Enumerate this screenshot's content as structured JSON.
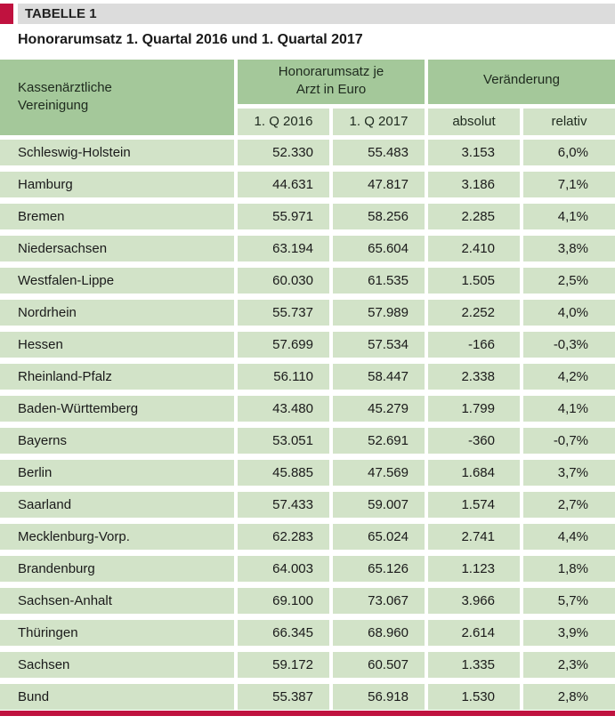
{
  "header": {
    "tag": "TABELLE 1",
    "title": "Honorarumsatz 1. Quartal 2016 und 1. Quartal 2017"
  },
  "colors": {
    "accent_red": "#c0123f",
    "header_green": "#a4c89a",
    "row_green": "#d2e3c8",
    "tag_gray": "#dcdcdc"
  },
  "table": {
    "col_kv_line1": "Kassenärztliche",
    "col_kv_line2": "Vereinigung",
    "group_honorar_line1": "Honorarumsatz  je",
    "group_honorar_line2": "Arzt in Euro",
    "group_change": "Veränderung",
    "sub_q2016": "1. Q 2016",
    "sub_q2017": "1. Q 2017",
    "sub_abs": "absolut",
    "sub_rel": "relativ",
    "rows": [
      {
        "name": "Schleswig-Holstein",
        "q2016": "52.330",
        "q2017": "55.483",
        "abs": "3.153",
        "rel": "6,0%"
      },
      {
        "name": "Hamburg",
        "q2016": "44.631",
        "q2017": "47.817",
        "abs": "3.186",
        "rel": "7,1%"
      },
      {
        "name": "Bremen",
        "q2016": "55.971",
        "q2017": "58.256",
        "abs": "2.285",
        "rel": "4,1%"
      },
      {
        "name": "Niedersachsen",
        "q2016": "63.194",
        "q2017": "65.604",
        "abs": "2.410",
        "rel": "3,8%"
      },
      {
        "name": "Westfalen-Lippe",
        "q2016": "60.030",
        "q2017": "61.535",
        "abs": "1.505",
        "rel": "2,5%"
      },
      {
        "name": "Nordrhein",
        "q2016": "55.737",
        "q2017": "57.989",
        "abs": "2.252",
        "rel": "4,0%"
      },
      {
        "name": "Hessen",
        "q2016": "57.699",
        "q2017": "57.534",
        "abs": "-166",
        "rel": "-0,3%"
      },
      {
        "name": "Rheinland-Pfalz",
        "q2016": "56.110",
        "q2017": "58.447",
        "abs": "2.338",
        "rel": "4,2%"
      },
      {
        "name": "Baden-Württemberg",
        "q2016": "43.480",
        "q2017": "45.279",
        "abs": "1.799",
        "rel": "4,1%"
      },
      {
        "name": "Bayerns",
        "q2016": "53.051",
        "q2017": "52.691",
        "abs": "-360",
        "rel": "-0,7%"
      },
      {
        "name": "Berlin",
        "q2016": "45.885",
        "q2017": "47.569",
        "abs": "1.684",
        "rel": "3,7%"
      },
      {
        "name": "Saarland",
        "q2016": "57.433",
        "q2017": "59.007",
        "abs": "1.574",
        "rel": "2,7%"
      },
      {
        "name": "Mecklenburg-Vorp.",
        "q2016": "62.283",
        "q2017": "65.024",
        "abs": "2.741",
        "rel": "4,4%"
      },
      {
        "name": "Brandenburg",
        "q2016": "64.003",
        "q2017": "65.126",
        "abs": "1.123",
        "rel": "1,8%"
      },
      {
        "name": "Sachsen-Anhalt",
        "q2016": "69.100",
        "q2017": "73.067",
        "abs": "3.966",
        "rel": "5,7%"
      },
      {
        "name": "Thüringen",
        "q2016": "66.345",
        "q2017": "68.960",
        "abs": "2.614",
        "rel": "3,9%"
      },
      {
        "name": "Sachsen",
        "q2016": "59.172",
        "q2017": "60.507",
        "abs": "1.335",
        "rel": "2,3%"
      },
      {
        "name": "Bund",
        "q2016": "55.387",
        "q2017": "56.918",
        "abs": "1.530",
        "rel": "2,8%"
      }
    ]
  }
}
